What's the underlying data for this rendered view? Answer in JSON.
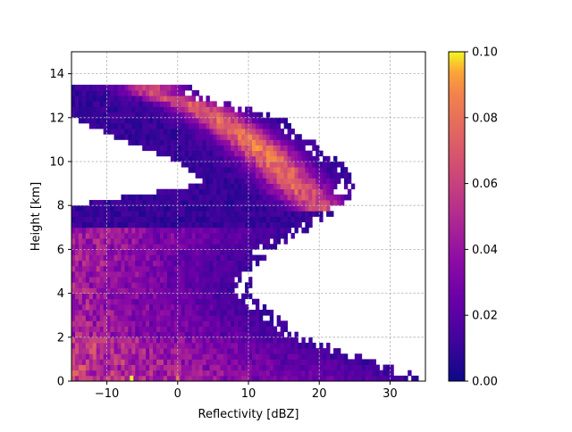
{
  "chart_data": {
    "type": "heatmap",
    "title": "",
    "xlabel": "Reflectivity [dBZ]",
    "ylabel": "Height [km]",
    "xlim": [
      -15,
      35
    ],
    "ylim": [
      0,
      15
    ],
    "grid": true,
    "colormap": "plasma",
    "xticks": [
      {
        "value": -10,
        "label": "−10"
      },
      {
        "value": 0,
        "label": "0"
      },
      {
        "value": 10,
        "label": "10"
      },
      {
        "value": 20,
        "label": "20"
      },
      {
        "value": 30,
        "label": "30"
      }
    ],
    "yticks": [
      {
        "value": 0,
        "label": "0"
      },
      {
        "value": 2,
        "label": "2"
      },
      {
        "value": 4,
        "label": "4"
      },
      {
        "value": 6,
        "label": "6"
      },
      {
        "value": 8,
        "label": "8"
      },
      {
        "value": 10,
        "label": "10"
      },
      {
        "value": 12,
        "label": "12"
      },
      {
        "value": 14,
        "label": "14"
      }
    ],
    "colorbar": {
      "range": [
        0.0,
        0.1
      ],
      "ticks": [
        {
          "value": 0.0,
          "label": "0.00"
        },
        {
          "value": 0.02,
          "label": "0.02"
        },
        {
          "value": 0.04,
          "label": "0.04"
        },
        {
          "value": 0.06,
          "label": "0.06"
        },
        {
          "value": 0.08,
          "label": "0.08"
        },
        {
          "value": 0.1,
          "label": "0.10"
        }
      ]
    },
    "bins": {
      "x_width": 0.5,
      "y_height": 0.25
    },
    "nonzero_region": [
      {
        "y": 0.25,
        "xmin": -15,
        "xmax": 34
      },
      {
        "y": 1,
        "xmin": -15,
        "xmax": 27
      },
      {
        "y": 2,
        "xmin": -15,
        "xmax": 18
      },
      {
        "y": 3,
        "xmin": -15,
        "xmax": 14
      },
      {
        "y": 4,
        "xmin": -15,
        "xmax": 10
      },
      {
        "y": 5,
        "xmin": -15,
        "xmax": 11
      },
      {
        "y": 6,
        "xmin": -15,
        "xmax": 13
      },
      {
        "y": 7,
        "xmin": -15,
        "xmax": 19
      },
      {
        "y": 8,
        "xmin": -15,
        "xmax": 24
      },
      {
        "y": 9,
        "xmin": 4,
        "xmax": 25
      },
      {
        "y": 10,
        "xmin": 0,
        "xmax": 23
      },
      {
        "y": 11,
        "xmin": -8,
        "xmax": 19
      },
      {
        "y": 12,
        "xmin": -15,
        "xmax": 15
      },
      {
        "y": 13,
        "xmin": -15,
        "xmax": 3
      }
    ],
    "ridge": [
      {
        "y": 13.2,
        "x": -4,
        "value": 0.05
      },
      {
        "y": 12.5,
        "x": 3,
        "value": 0.06
      },
      {
        "y": 11.5,
        "x": 8,
        "value": 0.065
      },
      {
        "y": 10.5,
        "x": 12,
        "value": 0.07
      },
      {
        "y": 9.5,
        "x": 15,
        "value": 0.065
      },
      {
        "y": 8.5,
        "x": 18,
        "value": 0.06
      },
      {
        "y": 8.0,
        "x": 20,
        "value": 0.05
      }
    ],
    "hotspots": [
      {
        "x": -6.5,
        "y": 0.1,
        "value": 0.1
      },
      {
        "x": 0,
        "y": 0.1,
        "value": 0.07
      }
    ]
  }
}
